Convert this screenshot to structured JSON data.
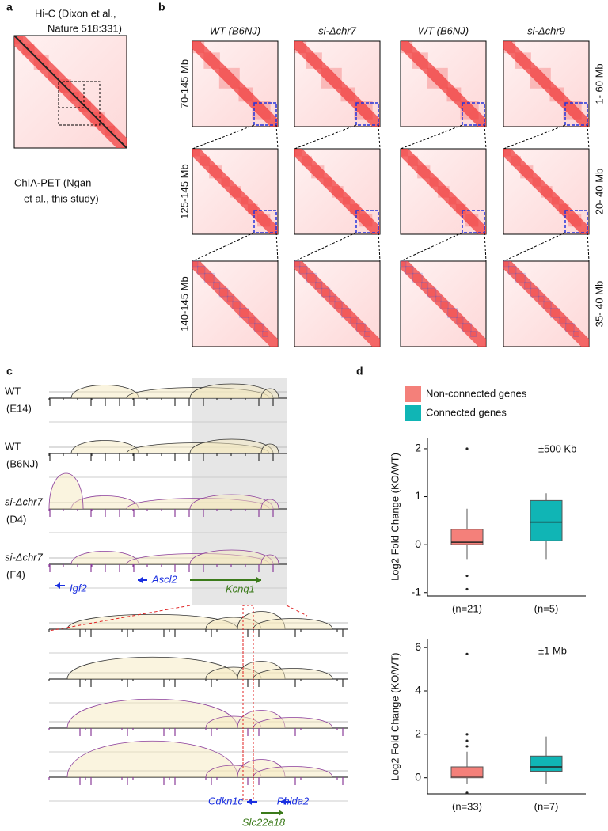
{
  "panel_labels": [
    "a",
    "b",
    "c",
    "d"
  ],
  "panel_a": {
    "hic_label_1": "Hi-C  (Dixon et al.,",
    "hic_label_2": "Nature 518:331)",
    "chiapet_label_1": "ChIA-PET (Ngan",
    "chiapet_label_2": "et al., this study)"
  },
  "panel_b": {
    "columns": [
      "WT (B6NJ)",
      "si-Δchr7",
      "WT (B6NJ)",
      "si-Δchr9"
    ],
    "left_rows": [
      "70-145 Mb",
      "125-145 Mb",
      "140-145 Mb"
    ],
    "right_rows": [
      "1- 60 Mb",
      "20- 40 Mb",
      "35- 40 Mb"
    ]
  },
  "panel_c": {
    "tracks": [
      [
        "WT",
        "(E14)"
      ],
      [
        "WT",
        "(B6NJ)"
      ],
      [
        "si-Δchr7",
        "(D4)"
      ],
      [
        "si-Δchr7",
        "(F4)"
      ]
    ],
    "genes": [
      "Igf2",
      "Ascl2",
      "Kcnq1",
      "Cdkn1c",
      "Phlda2",
      "Slc22a18"
    ]
  },
  "panel_d": {
    "legend": [
      {
        "name": "Non-connected genes",
        "color": "#f4807a"
      },
      {
        "name": "Connected genes",
        "color": "#10b5b5"
      }
    ]
  },
  "chart_data": [
    {
      "type": "box",
      "ylabel": "Log2 Fold Change (KO/WT)",
      "annotation": "±500 Kb",
      "categories": [
        "(n=21)",
        "(n=5)"
      ],
      "boxes": [
        {
          "low": -0.3,
          "q1": 0,
          "median": 0.05,
          "q3": 0.32,
          "high": 0.75,
          "outliers": [
            2.0,
            -0.65,
            -0.93
          ]
        },
        {
          "low": -0.3,
          "q1": 0.08,
          "median": 0.47,
          "q3": 0.92,
          "high": 1.07,
          "outliers": []
        }
      ],
      "ylim": [
        -1.07,
        2.23
      ],
      "yticks": [
        -1,
        0,
        1,
        2
      ]
    },
    {
      "type": "box",
      "ylabel": "Log2 Fold Change (KO/WT)",
      "annotation": "±1 Mb",
      "categories": [
        "(n=33)",
        "(n=7)"
      ],
      "boxes": [
        {
          "low": -0.3,
          "q1": 0,
          "median": 0.07,
          "q3": 0.5,
          "high": 1.2,
          "outliers": [
            5.7,
            2.0,
            1.7,
            1.45,
            -0.7
          ]
        },
        {
          "low": -0.3,
          "q1": 0.3,
          "median": 0.5,
          "q3": 1.0,
          "high": 1.9,
          "outliers": []
        }
      ],
      "ylim": [
        -0.74,
        6.37
      ],
      "yticks": [
        0,
        2,
        4,
        6
      ]
    }
  ]
}
